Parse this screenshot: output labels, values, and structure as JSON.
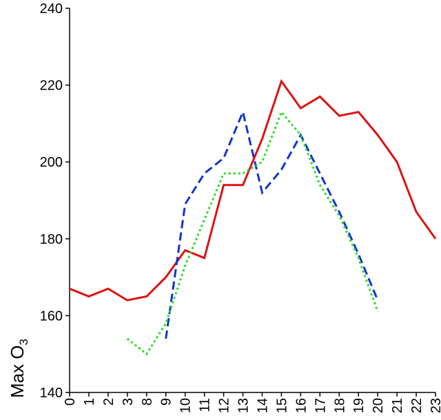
{
  "chart_data": {
    "type": "line",
    "title": "",
    "xlabel": "",
    "ylabel": "Max O",
    "ylabel_subscript": "3",
    "ylim": [
      140,
      240
    ],
    "yticks": [
      140,
      160,
      180,
      200,
      220,
      240
    ],
    "categories": [
      "0",
      "1",
      "2",
      "3",
      "8",
      "9",
      "10",
      "11",
      "12",
      "13",
      "14",
      "15",
      "16",
      "17",
      "18",
      "19",
      "20",
      "21",
      "22",
      "23"
    ],
    "grid": false,
    "legend": "none",
    "series": [
      {
        "color": "#dd1111",
        "style": "solid",
        "values": [
          167,
          165,
          167,
          164,
          165,
          170,
          177,
          175,
          194,
          194,
          206,
          221,
          214,
          217,
          212,
          213,
          207,
          200,
          187,
          180
        ]
      },
      {
        "color": "#1133cc",
        "style": "dashed",
        "values": [
          null,
          null,
          null,
          null,
          null,
          154,
          189,
          197,
          201,
          213,
          192,
          198,
          207,
          197,
          187,
          176,
          164,
          null,
          null,
          null
        ]
      },
      {
        "color": "#22dd22",
        "style": "dotted",
        "values": [
          null,
          null,
          null,
          154,
          150,
          158,
          173,
          185,
          197,
          197,
          200,
          213,
          207,
          194,
          186,
          175,
          161,
          null,
          null,
          null
        ]
      }
    ]
  }
}
